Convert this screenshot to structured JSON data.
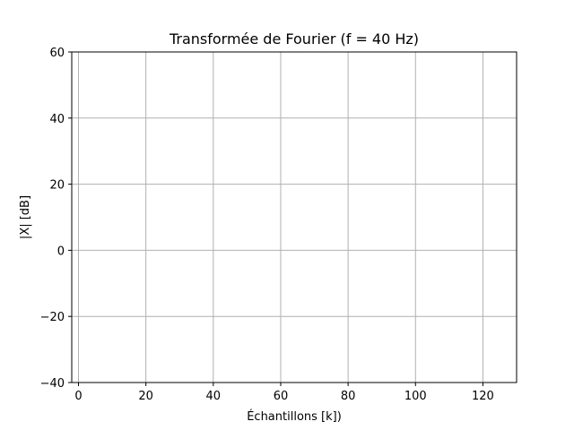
{
  "chart_data": {
    "type": "line",
    "title": "Transformée de Fourier (f = 40 Hz)",
    "xlabel": "Échantillons [k])",
    "ylabel": "|X| [dB]",
    "xlim": [
      -2,
      130
    ],
    "ylim": [
      -40,
      60
    ],
    "x_ticks": [
      0,
      20,
      40,
      60,
      80,
      100,
      120
    ],
    "y_ticks": [
      -40,
      -20,
      0,
      20,
      40,
      60
    ],
    "x_tick_labels": [
      "0",
      "20",
      "40",
      "60",
      "80",
      "100",
      "120"
    ],
    "y_tick_labels": [
      "−40",
      "−20",
      "0",
      "20",
      "40",
      "60"
    ],
    "grid": true,
    "series": []
  }
}
